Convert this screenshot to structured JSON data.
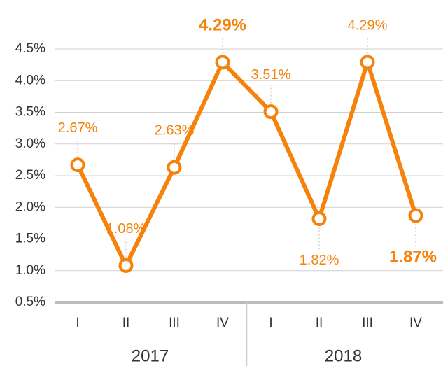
{
  "chart_data": {
    "type": "line",
    "categories": [
      "I",
      "II",
      "III",
      "IV",
      "I",
      "II",
      "III",
      "IV"
    ],
    "groups": [
      "2017",
      "2018"
    ],
    "series": [
      {
        "color": "#f5820a",
        "values": [
          2.67,
          1.08,
          2.63,
          4.29,
          3.51,
          1.82,
          4.29,
          1.87
        ],
        "value_labels": [
          "2.67%",
          "1.08%",
          "2.63%",
          "4.29%",
          "3.51%",
          "1.82%",
          "4.29%",
          "1.87%"
        ]
      }
    ],
    "label_positions": [
      "above",
      "above",
      "above",
      "above",
      "above",
      "below",
      "above",
      "below"
    ],
    "bold_labels": [
      3,
      7
    ],
    "ylim": [
      0.5,
      4.5
    ],
    "yticks": [
      {
        "value": 0.5,
        "label": "0.5%"
      },
      {
        "value": 1.0,
        "label": "1.0%"
      },
      {
        "value": 1.5,
        "label": "1.5%"
      },
      {
        "value": 2.0,
        "label": "2.0%"
      },
      {
        "value": 2.5,
        "label": "2.5%"
      },
      {
        "value": 3.0,
        "label": "3.0%"
      },
      {
        "value": 3.5,
        "label": "3.5%"
      },
      {
        "value": 4.0,
        "label": "4.0%"
      },
      {
        "value": 4.5,
        "label": "4.5%"
      }
    ],
    "grid": true
  }
}
